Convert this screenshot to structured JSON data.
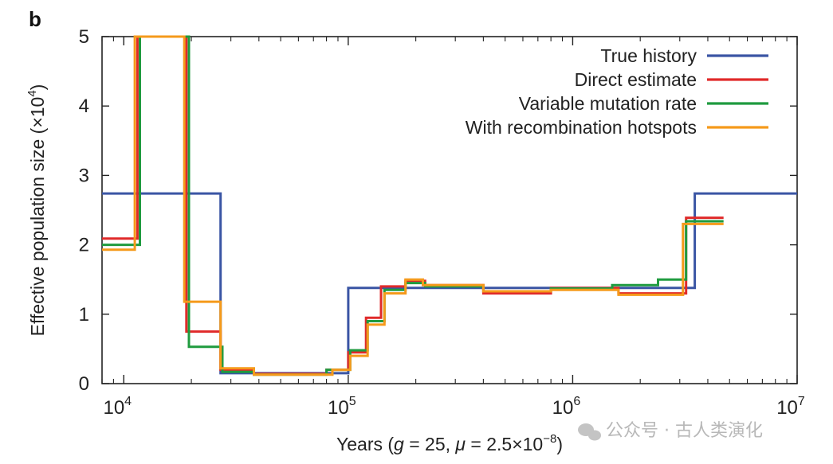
{
  "panel_label": "b",
  "watermark": "公众号 · 古人类演化",
  "chart_data": {
    "type": "line",
    "step": true,
    "x_scale": "log10",
    "xlim": [
      8000,
      10000000
    ],
    "ylim": [
      0,
      5
    ],
    "xticks": [
      {
        "value": 10000,
        "label": "10",
        "exp": "4"
      },
      {
        "value": 100000,
        "label": "10",
        "exp": "5"
      },
      {
        "value": 1000000,
        "label": "10",
        "exp": "6"
      },
      {
        "value": 10000000,
        "label": "10",
        "exp": "7"
      }
    ],
    "yticks": [
      0,
      1,
      2,
      3,
      4,
      5
    ],
    "xlabel": {
      "prefix": "Years (",
      "g_sym": "g",
      "g_val": " = 25, ",
      "mu_sym": "μ",
      "mu_val": " = 2.5×10",
      "mu_exp": "−8",
      "suffix": ")"
    },
    "ylabel": {
      "text": "Effective population size (×10",
      "exp": "4",
      "suffix": ")"
    },
    "legend_position": "top-right",
    "series": [
      {
        "name": "True history",
        "color": "#3a55a4",
        "points": [
          [
            8000,
            2.74
          ],
          [
            27000,
            2.74
          ],
          [
            27000,
            0.15
          ],
          [
            100000,
            0.15
          ],
          [
            100000,
            1.38
          ],
          [
            3500000,
            1.38
          ],
          [
            3500000,
            2.74
          ],
          [
            10000000,
            2.74
          ]
        ]
      },
      {
        "name": "Direct estimate",
        "color": "#e02a2a",
        "points": [
          [
            8000,
            2.09
          ],
          [
            11500,
            2.09
          ],
          [
            11500,
            5.0
          ],
          [
            19000,
            5.0
          ],
          [
            19000,
            0.75
          ],
          [
            27000,
            0.75
          ],
          [
            27000,
            0.2
          ],
          [
            38000,
            0.2
          ],
          [
            38000,
            0.14
          ],
          [
            80000,
            0.14
          ],
          [
            80000,
            0.2
          ],
          [
            100000,
            0.2
          ],
          [
            100000,
            0.45
          ],
          [
            120000,
            0.45
          ],
          [
            120000,
            0.95
          ],
          [
            140000,
            0.95
          ],
          [
            140000,
            1.4
          ],
          [
            180000,
            1.4
          ],
          [
            180000,
            1.48
          ],
          [
            220000,
            1.48
          ],
          [
            220000,
            1.42
          ],
          [
            400000,
            1.42
          ],
          [
            400000,
            1.3
          ],
          [
            800000,
            1.3
          ],
          [
            800000,
            1.38
          ],
          [
            1600000,
            1.38
          ],
          [
            1600000,
            1.3
          ],
          [
            3200000,
            1.3
          ],
          [
            3200000,
            2.39
          ],
          [
            4700000,
            2.39
          ]
        ]
      },
      {
        "name": "Variable mutation rate",
        "color": "#1f9b3f",
        "points": [
          [
            8000,
            2.0
          ],
          [
            11800,
            2.0
          ],
          [
            11800,
            5.0
          ],
          [
            19500,
            5.0
          ],
          [
            19500,
            0.53
          ],
          [
            27500,
            0.53
          ],
          [
            27500,
            0.17
          ],
          [
            38000,
            0.17
          ],
          [
            38000,
            0.13
          ],
          [
            80000,
            0.13
          ],
          [
            80000,
            0.2
          ],
          [
            102000,
            0.2
          ],
          [
            102000,
            0.48
          ],
          [
            122000,
            0.48
          ],
          [
            122000,
            0.9
          ],
          [
            145000,
            0.9
          ],
          [
            145000,
            1.35
          ],
          [
            180000,
            1.35
          ],
          [
            180000,
            1.45
          ],
          [
            220000,
            1.45
          ],
          [
            220000,
            1.4
          ],
          [
            400000,
            1.4
          ],
          [
            400000,
            1.33
          ],
          [
            800000,
            1.33
          ],
          [
            800000,
            1.37
          ],
          [
            1500000,
            1.37
          ],
          [
            1500000,
            1.42
          ],
          [
            2400000,
            1.42
          ],
          [
            2400000,
            1.5
          ],
          [
            3200000,
            1.5
          ],
          [
            3200000,
            2.34
          ],
          [
            4700000,
            2.34
          ]
        ]
      },
      {
        "name": "With recombination hotspots",
        "color": "#f59a1b",
        "points": [
          [
            8000,
            1.93
          ],
          [
            11200,
            1.93
          ],
          [
            11200,
            5.0
          ],
          [
            18600,
            5.0
          ],
          [
            18600,
            1.18
          ],
          [
            27000,
            1.18
          ],
          [
            27000,
            0.22
          ],
          [
            38000,
            0.22
          ],
          [
            38000,
            0.13
          ],
          [
            85000,
            0.13
          ],
          [
            85000,
            0.2
          ],
          [
            102000,
            0.2
          ],
          [
            102000,
            0.4
          ],
          [
            122000,
            0.4
          ],
          [
            122000,
            0.85
          ],
          [
            145000,
            0.85
          ],
          [
            145000,
            1.3
          ],
          [
            180000,
            1.3
          ],
          [
            180000,
            1.5
          ],
          [
            215000,
            1.5
          ],
          [
            215000,
            1.42
          ],
          [
            400000,
            1.42
          ],
          [
            400000,
            1.33
          ],
          [
            800000,
            1.33
          ],
          [
            800000,
            1.35
          ],
          [
            1600000,
            1.35
          ],
          [
            1600000,
            1.28
          ],
          [
            3100000,
            1.28
          ],
          [
            3100000,
            2.3
          ],
          [
            4700000,
            2.3
          ]
        ]
      }
    ]
  }
}
